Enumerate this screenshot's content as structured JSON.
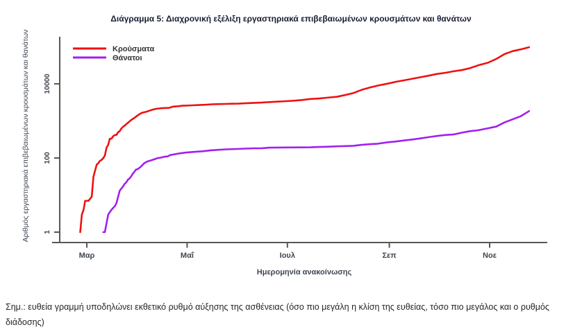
{
  "page": {
    "title": "Διάγραμμα 5: Διαχρονική εξέλιξη εργαστηριακά επιβεβαιωμένων κρουσμάτων και θανάτων",
    "note": "Σημ.: ευθεία γραμμή υποδηλώνει εκθετικό ρυθμό αύξησης της ασθένειας (όσο πιο μεγάλη η κλίση της ευθείας, τόσο πιο μεγάλος και ο ρυθμός διάδοσης)"
  },
  "chart_data": {
    "type": "line",
    "title": "Διάγραμμα 5: Διαχρονική εξέλιξη εργαστηριακά επιβεβαιωμένων κρουσμάτων και θανάτων",
    "xlabel": "Ημερομηνία ανακοίνωσης",
    "ylabel": "Αριθμός εργαστηριακά επιβεβαιωμένων κρουσμάτων και θανάτων",
    "y_scale": "log10",
    "ylim": [
      1,
      170000
    ],
    "x_range": [
      "2020-02-13",
      "2020-12-06"
    ],
    "grid": false,
    "legend_position": "top-left-inside",
    "x_ticks": [
      {
        "label": "Μαρ",
        "date": "2020-03-01"
      },
      {
        "label": "Μαΐ",
        "date": "2020-05-01"
      },
      {
        "label": "Ιουλ",
        "date": "2020-07-01"
      },
      {
        "label": "Σεπ",
        "date": "2020-09-01"
      },
      {
        "label": "Νοε",
        "date": "2020-11-01"
      }
    ],
    "y_ticks": [
      {
        "label": "1",
        "value": 1
      },
      {
        "label": "100",
        "value": 100
      },
      {
        "label": "10000",
        "value": 10000
      }
    ],
    "series": [
      {
        "id": "cases",
        "name": "Κρούσματα",
        "color": "#ee1111",
        "points": [
          [
            "2020-02-26",
            1
          ],
          [
            "2020-02-27",
            3
          ],
          [
            "2020-02-28",
            4
          ],
          [
            "2020-02-29",
            7
          ],
          [
            "2020-03-02",
            7
          ],
          [
            "2020-03-04",
            9
          ],
          [
            "2020-03-05",
            31
          ],
          [
            "2020-03-06",
            45
          ],
          [
            "2020-03-07",
            66
          ],
          [
            "2020-03-08",
            73
          ],
          [
            "2020-03-09",
            84
          ],
          [
            "2020-03-10",
            89
          ],
          [
            "2020-03-11",
            99
          ],
          [
            "2020-03-12",
            117
          ],
          [
            "2020-03-13",
            190
          ],
          [
            "2020-03-14",
            228
          ],
          [
            "2020-03-15",
            331
          ],
          [
            "2020-03-16",
            331
          ],
          [
            "2020-03-17",
            387
          ],
          [
            "2020-03-18",
            418
          ],
          [
            "2020-03-19",
            418
          ],
          [
            "2020-03-20",
            495
          ],
          [
            "2020-03-21",
            530
          ],
          [
            "2020-03-22",
            624
          ],
          [
            "2020-03-23",
            695
          ],
          [
            "2020-03-24",
            743
          ],
          [
            "2020-03-25",
            821
          ],
          [
            "2020-03-26",
            892
          ],
          [
            "2020-03-27",
            966
          ],
          [
            "2020-03-28",
            1061
          ],
          [
            "2020-03-30",
            1212
          ],
          [
            "2020-03-31",
            1314
          ],
          [
            "2020-04-01",
            1415
          ],
          [
            "2020-04-02",
            1514
          ],
          [
            "2020-04-03",
            1613
          ],
          [
            "2020-04-04",
            1673
          ],
          [
            "2020-04-06",
            1755
          ],
          [
            "2020-04-08",
            1884
          ],
          [
            "2020-04-10",
            2011
          ],
          [
            "2020-04-12",
            2114
          ],
          [
            "2020-04-14",
            2170
          ],
          [
            "2020-04-16",
            2207
          ],
          [
            "2020-04-18",
            2235
          ],
          [
            "2020-04-20",
            2245
          ],
          [
            "2020-04-22",
            2408
          ],
          [
            "2020-04-24",
            2463
          ],
          [
            "2020-04-26",
            2506
          ],
          [
            "2020-04-28",
            2566
          ],
          [
            "2020-04-30",
            2591
          ],
          [
            "2020-05-04",
            2632
          ],
          [
            "2020-05-08",
            2678
          ],
          [
            "2020-05-12",
            2726
          ],
          [
            "2020-05-16",
            2810
          ],
          [
            "2020-05-20",
            2840
          ],
          [
            "2020-05-24",
            2876
          ],
          [
            "2020-05-28",
            2906
          ],
          [
            "2020-06-01",
            2917
          ],
          [
            "2020-06-05",
            2980
          ],
          [
            "2020-06-10",
            3049
          ],
          [
            "2020-06-15",
            3121
          ],
          [
            "2020-06-20",
            3227
          ],
          [
            "2020-06-25",
            3310
          ],
          [
            "2020-06-30",
            3409
          ],
          [
            "2020-07-05",
            3511
          ],
          [
            "2020-07-10",
            3672
          ],
          [
            "2020-07-15",
            3910
          ],
          [
            "2020-07-20",
            4007
          ],
          [
            "2020-07-25",
            4227
          ],
          [
            "2020-07-31",
            4477
          ],
          [
            "2020-08-05",
            4974
          ],
          [
            "2020-08-10",
            5623
          ],
          [
            "2020-08-15",
            6858
          ],
          [
            "2020-08-20",
            7934
          ],
          [
            "2020-08-25",
            8987
          ],
          [
            "2020-08-31",
            10134
          ],
          [
            "2020-09-05",
            11386
          ],
          [
            "2020-09-10",
            12452
          ],
          [
            "2020-09-15",
            13730
          ],
          [
            "2020-09-20",
            15142
          ],
          [
            "2020-09-25",
            16627
          ],
          [
            "2020-09-30",
            18475
          ],
          [
            "2020-10-05",
            19842
          ],
          [
            "2020-10-10",
            21772
          ],
          [
            "2020-10-15",
            23495
          ],
          [
            "2020-10-20",
            26469
          ],
          [
            "2020-10-25",
            31496
          ],
          [
            "2020-10-31",
            37196
          ],
          [
            "2020-11-05",
            46892
          ],
          [
            "2020-11-10",
            63321
          ],
          [
            "2020-11-15",
            76403
          ],
          [
            "2020-11-20",
            85261
          ],
          [
            "2020-11-25",
            97288
          ]
        ]
      },
      {
        "id": "deaths",
        "name": "Θάνατοι",
        "color": "#a020f0",
        "points": [
          [
            "2020-03-11",
            1
          ],
          [
            "2020-03-12",
            1
          ],
          [
            "2020-03-14",
            3
          ],
          [
            "2020-03-16",
            4
          ],
          [
            "2020-03-18",
            5
          ],
          [
            "2020-03-19",
            6
          ],
          [
            "2020-03-21",
            13
          ],
          [
            "2020-03-22",
            15
          ],
          [
            "2020-03-23",
            17
          ],
          [
            "2020-03-24",
            20
          ],
          [
            "2020-03-25",
            22
          ],
          [
            "2020-03-26",
            26
          ],
          [
            "2020-03-27",
            28
          ],
          [
            "2020-03-28",
            32
          ],
          [
            "2020-03-29",
            38
          ],
          [
            "2020-03-30",
            43
          ],
          [
            "2020-03-31",
            49
          ],
          [
            "2020-04-01",
            50
          ],
          [
            "2020-04-03",
            59
          ],
          [
            "2020-04-05",
            73
          ],
          [
            "2020-04-07",
            81
          ],
          [
            "2020-04-09",
            86
          ],
          [
            "2020-04-11",
            92
          ],
          [
            "2020-04-13",
            99
          ],
          [
            "2020-04-15",
            102
          ],
          [
            "2020-04-17",
            108
          ],
          [
            "2020-04-19",
            110
          ],
          [
            "2020-04-21",
            121
          ],
          [
            "2020-04-23",
            125
          ],
          [
            "2020-04-25",
            130
          ],
          [
            "2020-04-27",
            134
          ],
          [
            "2020-04-30",
            140
          ],
          [
            "2020-05-05",
            146
          ],
          [
            "2020-05-10",
            151
          ],
          [
            "2020-05-15",
            160
          ],
          [
            "2020-05-20",
            166
          ],
          [
            "2020-05-25",
            171
          ],
          [
            "2020-05-31",
            175
          ],
          [
            "2020-06-05",
            179
          ],
          [
            "2020-06-10",
            182
          ],
          [
            "2020-06-15",
            183
          ],
          [
            "2020-06-20",
            190
          ],
          [
            "2020-06-30",
            192
          ],
          [
            "2020-07-10",
            193
          ],
          [
            "2020-07-15",
            194
          ],
          [
            "2020-07-20",
            198
          ],
          [
            "2020-07-25",
            201
          ],
          [
            "2020-07-31",
            206
          ],
          [
            "2020-08-05",
            210
          ],
          [
            "2020-08-10",
            213
          ],
          [
            "2020-08-15",
            226
          ],
          [
            "2020-08-20",
            235
          ],
          [
            "2020-08-25",
            243
          ],
          [
            "2020-08-31",
            266
          ],
          [
            "2020-09-05",
            278
          ],
          [
            "2020-09-10",
            297
          ],
          [
            "2020-09-15",
            315
          ],
          [
            "2020-09-20",
            338
          ],
          [
            "2020-09-25",
            366
          ],
          [
            "2020-09-30",
            393
          ],
          [
            "2020-10-05",
            417
          ],
          [
            "2020-10-10",
            431
          ],
          [
            "2020-10-15",
            482
          ],
          [
            "2020-10-20",
            528
          ],
          [
            "2020-10-25",
            559
          ],
          [
            "2020-10-31",
            635
          ],
          [
            "2020-11-05",
            702
          ],
          [
            "2020-11-10",
            909
          ],
          [
            "2020-11-15",
            1106
          ],
          [
            "2020-11-20",
            1347
          ],
          [
            "2020-11-25",
            1842
          ]
        ]
      }
    ]
  }
}
